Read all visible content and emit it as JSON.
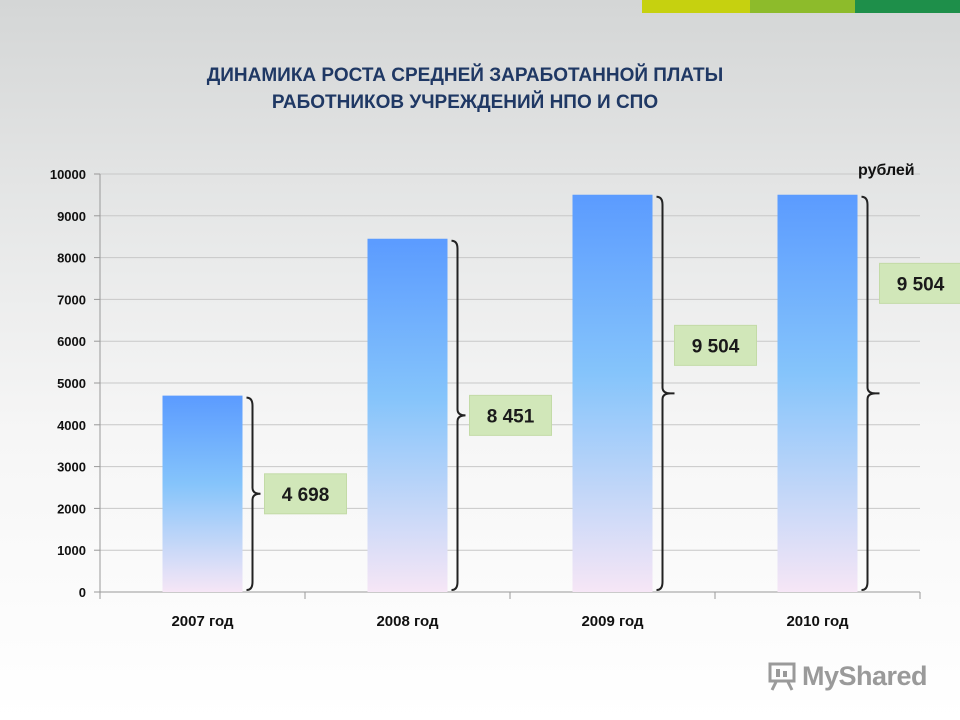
{
  "title": "ДИНАМИКА РОСТА СРЕДНЕЙ ЗАРАБОТАННОЙ ПЛАТЫ\nРАБОТНИКОВ  УЧРЕЖДЕНИЙ НПО И СПО",
  "logo_text": "MyShared",
  "colors": {
    "bar_top": "#5b9bff",
    "bar_mid": "#85c4fb",
    "bar_bottom": "#f6e6f6",
    "label_box": "#d1e7b9",
    "title": "#1f3864"
  },
  "chart_data": {
    "type": "bar",
    "title": "ДИНАМИКА РОСТА СРЕДНЕЙ ЗАРАБОТАННОЙ ПЛАТЫ РАБОТНИКОВ  УЧРЕЖДЕНИЙ НПО И СПО",
    "ylabel": "рублей",
    "xlabel": "",
    "categories": [
      "2007 год",
      "2008 год",
      "2009 год",
      "2010 год"
    ],
    "values": [
      4698,
      8451,
      9504,
      9504
    ],
    "data_labels": [
      "4 698",
      "8 451",
      "9 504",
      "9 504"
    ],
    "ylim": [
      0,
      10000
    ],
    "yticks": [
      0,
      1000,
      2000,
      3000,
      4000,
      5000,
      6000,
      7000,
      8000,
      9000,
      10000
    ],
    "grid": true,
    "legend": "none"
  }
}
